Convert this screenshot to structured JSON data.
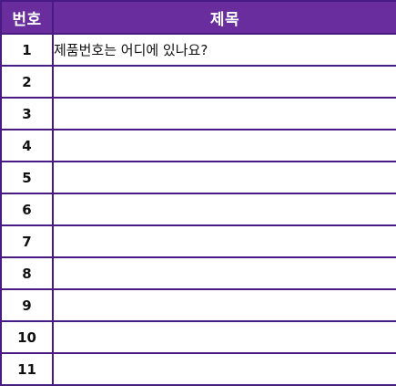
{
  "header": {
    "num_label": "번호",
    "title_label": "제목"
  },
  "colors": {
    "header_bg": "#6a2d9e",
    "border": "#4a1a84",
    "header_text": "#ffffff"
  },
  "rows": [
    {
      "num": "1",
      "title": "제품번호는 어디에 있나요?"
    },
    {
      "num": "2",
      "title": ""
    },
    {
      "num": "3",
      "title": ""
    },
    {
      "num": "4",
      "title": ""
    },
    {
      "num": "5",
      "title": ""
    },
    {
      "num": "6",
      "title": ""
    },
    {
      "num": "7",
      "title": ""
    },
    {
      "num": "8",
      "title": ""
    },
    {
      "num": "9",
      "title": ""
    },
    {
      "num": "10",
      "title": ""
    },
    {
      "num": "11",
      "title": ""
    }
  ]
}
